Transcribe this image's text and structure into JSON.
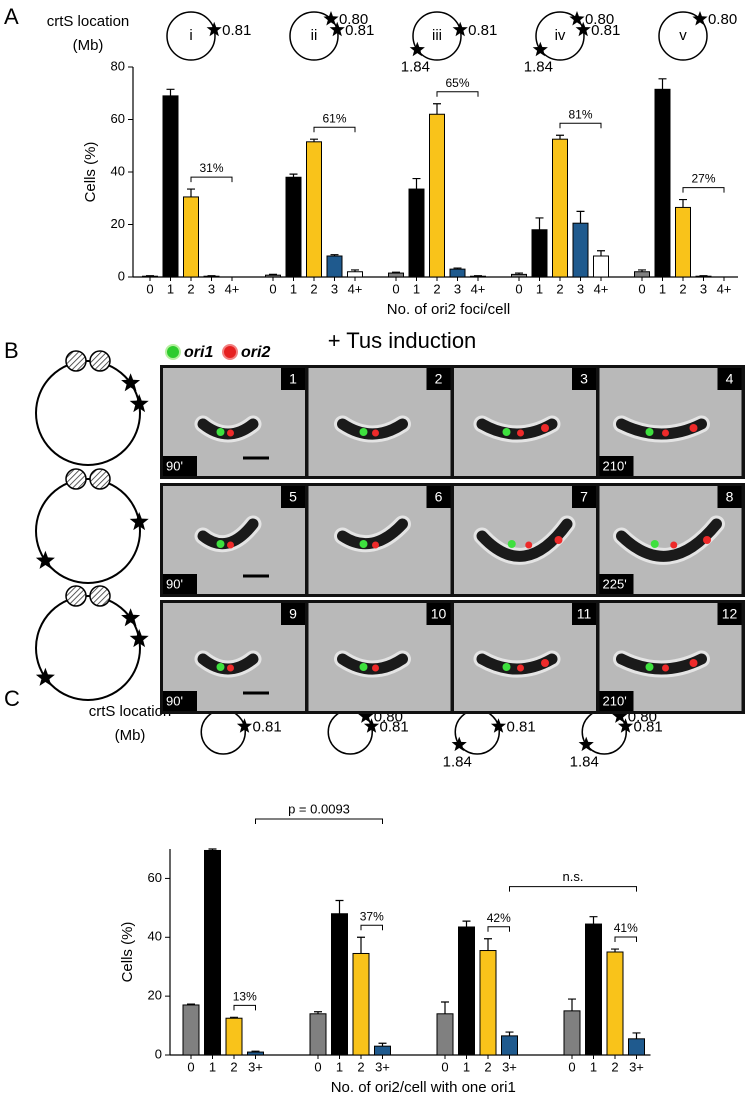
{
  "chart_data": [
    {
      "type": "bar",
      "panel": "A",
      "location_label": "crtS location",
      "location_unit": "(Mb)",
      "ylabel": "Cells (%)",
      "xlabel": "No. of ori2 foci/cell",
      "ylim": [
        0,
        80
      ],
      "yticks": [
        0,
        20,
        40,
        60,
        80
      ],
      "categories": [
        "0",
        "1",
        "2",
        "3",
        "4+"
      ],
      "colors": [
        "#808080",
        "#000000",
        "#f9c31a",
        "#1f5a8e",
        "#ffffff"
      ],
      "groups": [
        {
          "name": "i",
          "stars": [
            "0.81"
          ],
          "values": [
            0.3,
            69,
            30.5,
            0.3,
            0
          ],
          "errors": [
            0.2,
            2.5,
            3,
            0.2,
            0
          ],
          "bracket": "31%"
        },
        {
          "name": "ii",
          "stars": [
            "0.80",
            "0.81"
          ],
          "values": [
            0.7,
            38,
            51.5,
            8,
            2
          ],
          "errors": [
            0.3,
            1.2,
            1,
            0.5,
            0.7
          ],
          "bracket": "61%"
        },
        {
          "name": "iii",
          "stars": [
            "0.81",
            "1.84"
          ],
          "values": [
            1.5,
            33.5,
            62,
            3,
            0.3
          ],
          "errors": [
            0.3,
            4,
            4,
            0.4,
            0.2
          ],
          "bracket": "65%"
        },
        {
          "name": "iv",
          "stars": [
            "0.80",
            "0.81",
            "1.84"
          ],
          "values": [
            1,
            18,
            52.5,
            20.5,
            8
          ],
          "errors": [
            0.5,
            4.5,
            1.5,
            4.5,
            2
          ],
          "bracket": "81%"
        },
        {
          "name": "v",
          "stars": [
            "0.80"
          ],
          "values": [
            2,
            71.5,
            26.5,
            0.3,
            0
          ],
          "errors": [
            0.7,
            4,
            3,
            0.2,
            0
          ],
          "bracket": "27%"
        }
      ]
    },
    {
      "type": "bar",
      "panel": "C",
      "location_label": "crtS location",
      "location_unit": "(Mb)",
      "ylabel": "Cells (%)",
      "xlabel": "No. of ori2/cell with one ori1",
      "ylim": [
        0,
        70
      ],
      "yticks": [
        0,
        20,
        40,
        60
      ],
      "categories": [
        "0",
        "1",
        "2",
        "3+"
      ],
      "colors": [
        "#808080",
        "#000000",
        "#f9c31a",
        "#1f5a8e"
      ],
      "groups": [
        {
          "stars": [
            "0.81"
          ],
          "values": [
            17,
            69.5,
            12.5,
            1
          ],
          "errors": [
            0.3,
            0.5,
            0.3,
            0.3
          ],
          "bracket": "13%"
        },
        {
          "stars": [
            "0.80",
            "0.81"
          ],
          "values": [
            14,
            48,
            34.5,
            3
          ],
          "errors": [
            0.7,
            4.5,
            5.5,
            1
          ],
          "bracket": "37%"
        },
        {
          "stars": [
            "0.81",
            "1.84"
          ],
          "values": [
            14,
            43.5,
            35.5,
            6.5
          ],
          "errors": [
            4,
            2,
            4,
            1.3
          ],
          "bracket": "42%"
        },
        {
          "stars": [
            "0.80",
            "0.81",
            "1.84"
          ],
          "values": [
            15,
            44.5,
            35,
            5.5
          ],
          "errors": [
            4,
            2.5,
            1,
            2
          ],
          "bracket": "41%"
        }
      ],
      "comparisons": [
        "p = 0.0093",
        "n.s."
      ]
    }
  ],
  "panel_b": {
    "letter": "B",
    "title": "+ Tus induction",
    "legend": [
      "ori1",
      "ori2"
    ],
    "rows": [
      {
        "frames": [
          "1",
          "2",
          "3",
          "4"
        ],
        "times": [
          "90'",
          "210'"
        ]
      },
      {
        "frames": [
          "5",
          "6",
          "7",
          "8"
        ],
        "times": [
          "90'",
          "225'"
        ]
      },
      {
        "frames": [
          "9",
          "10",
          "11",
          "12"
        ],
        "times": [
          "90'",
          "210'"
        ]
      }
    ]
  }
}
